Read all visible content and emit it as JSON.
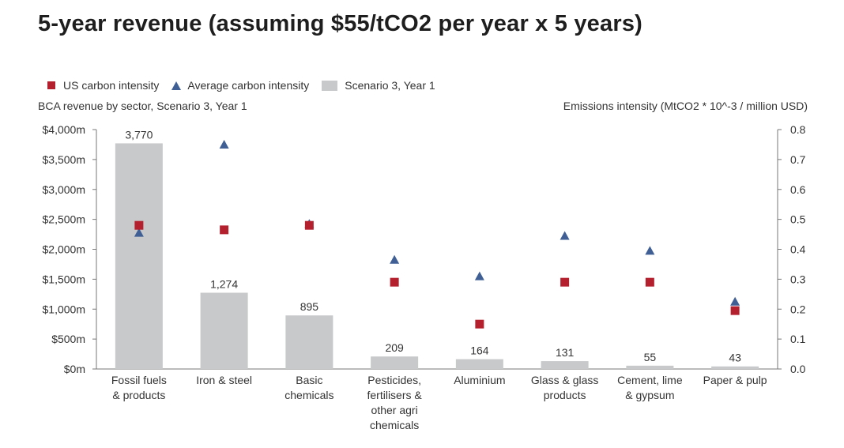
{
  "title": "5-year revenue (assuming $55/tCO2 per year x 5 years)",
  "legend": {
    "us": "US carbon intensity",
    "avg": "Average carbon intensity",
    "bar": "Scenario 3, Year 1"
  },
  "subtitle_left": "BCA revenue by sector, Scenario 3, Year 1",
  "subtitle_right": "Emissions intensity (MtCO2 * 10^-3 / million USD)",
  "colors": {
    "bar": "#c8c9cb",
    "us": "#b5202e",
    "avg": "#3f5f95",
    "axis": "#777777"
  },
  "chart_data": {
    "type": "bar",
    "categories": [
      [
        "Fossil fuels",
        "& products"
      ],
      [
        "Iron & steel"
      ],
      [
        "Basic",
        "chemicals"
      ],
      [
        "Pesticides,",
        "fertilisers &",
        "other agri",
        "chemicals"
      ],
      [
        "Aluminium"
      ],
      [
        "Glass & glass",
        "products"
      ],
      [
        "Cement, lime",
        "& gypsum"
      ],
      [
        "Paper & pulp"
      ]
    ],
    "series": [
      {
        "name": "Scenario 3, Year 1",
        "type": "bar",
        "axis": "left",
        "values": [
          3770,
          1274,
          895,
          209,
          164,
          131,
          55,
          43
        ],
        "labels": [
          "3,770",
          "1,274",
          "895",
          "209",
          "164",
          "131",
          "55",
          "43"
        ]
      },
      {
        "name": "US carbon intensity",
        "type": "scatter",
        "marker": "square",
        "axis": "right",
        "values": [
          0.48,
          0.465,
          0.48,
          0.29,
          0.15,
          0.29,
          0.29,
          0.195
        ]
      },
      {
        "name": "Average carbon intensity",
        "type": "scatter",
        "marker": "triangle",
        "axis": "right",
        "values": [
          0.455,
          0.75,
          0.485,
          0.365,
          0.31,
          0.445,
          0.395,
          0.225
        ]
      }
    ],
    "y_left": {
      "ylim": [
        0,
        4000
      ],
      "ticks": [
        0,
        500,
        1000,
        1500,
        2000,
        2500,
        3000,
        3500,
        4000
      ],
      "tick_labels": [
        "$0m",
        "$500m",
        "$1,000m",
        "$1,500m",
        "$2,000m",
        "$2,500m",
        "$3,000m",
        "$3,500m",
        "$4,000m"
      ]
    },
    "y_right": {
      "ylim": [
        0,
        0.8
      ],
      "ticks": [
        0,
        0.1,
        0.2,
        0.3,
        0.4,
        0.5,
        0.6,
        0.7,
        0.8
      ],
      "tick_labels": [
        "0.0",
        "0.1",
        "0.2",
        "0.3",
        "0.4",
        "0.5",
        "0.6",
        "0.7",
        "0.8"
      ]
    },
    "legend_position": "top-left",
    "grid": false
  }
}
